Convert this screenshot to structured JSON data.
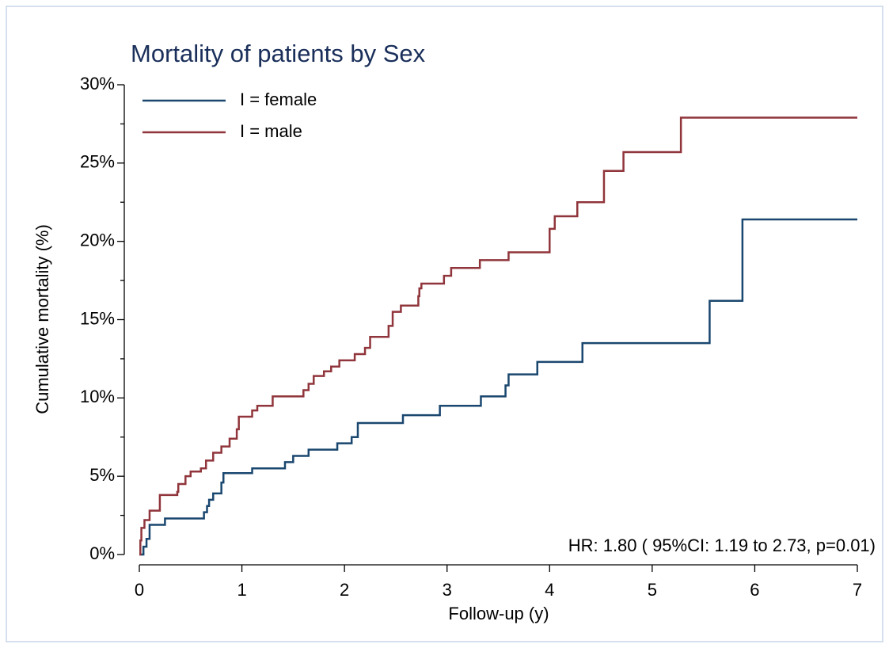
{
  "chart_data": {
    "type": "line",
    "step": "post",
    "title": "Mortality of patients by Sex",
    "x_label": "Follow-up (y)",
    "y_label": "Cumulative mortality (%)",
    "annotation": "HR: 1.80 ( 95%CI: 1.19 to 2.73, p=0.01)",
    "xlim": [
      0,
      7
    ],
    "xticks": [
      0,
      1,
      2,
      3,
      4,
      5,
      6,
      7
    ],
    "ylim": [
      0,
      30
    ],
    "yticks": [
      {
        "value": 0,
        "label": "0%"
      },
      {
        "value": 5,
        "label": "5%"
      },
      {
        "value": 10,
        "label": "10%"
      },
      {
        "value": 15,
        "label": "15%"
      },
      {
        "value": 20,
        "label": "20%"
      },
      {
        "value": 25,
        "label": "25%"
      },
      {
        "value": 30,
        "label": "30%"
      }
    ],
    "yminor": [
      2.5,
      7.5,
      12.5,
      17.5,
      22.5,
      27.5
    ],
    "grid": false,
    "legend": "top-left",
    "series": [
      {
        "name": "I = female",
        "color": "#1a476f",
        "x": [
          0,
          0.04,
          0.07,
          0.1,
          0.25,
          0.63,
          0.66,
          0.68,
          0.72,
          0.8,
          0.82,
          1.1,
          1.42,
          1.5,
          1.65,
          1.93,
          2.07,
          2.13,
          2.57,
          2.93,
          3.33,
          3.57,
          3.6,
          3.88,
          4.32,
          5.56,
          5.88,
          7
        ],
        "values": [
          0,
          0.5,
          1.0,
          1.9,
          2.3,
          2.7,
          3.1,
          3.5,
          3.9,
          4.6,
          5.2,
          5.5,
          5.9,
          6.3,
          6.7,
          7.1,
          7.5,
          8.4,
          8.9,
          9.5,
          10.1,
          10.8,
          11.5,
          12.3,
          13.5,
          16.2,
          21.4,
          21.4
        ]
      },
      {
        "name": "I = male",
        "color": "#90353b",
        "x": [
          0,
          0.01,
          0.02,
          0.05,
          0.1,
          0.2,
          0.37,
          0.38,
          0.45,
          0.5,
          0.6,
          0.65,
          0.72,
          0.8,
          0.88,
          0.95,
          0.97,
          1.1,
          1.15,
          1.3,
          1.6,
          1.65,
          1.7,
          1.8,
          1.87,
          1.95,
          2.1,
          2.2,
          2.25,
          2.43,
          2.47,
          2.55,
          2.72,
          2.73,
          2.75,
          2.97,
          3.04,
          3.32,
          3.6,
          4.0,
          4.05,
          4.27,
          4.53,
          4.72,
          5.28,
          7
        ],
        "values": [
          0,
          0.9,
          1.7,
          2.2,
          2.8,
          3.8,
          4.0,
          4.5,
          5.0,
          5.3,
          5.5,
          6.0,
          6.5,
          6.9,
          7.4,
          8.0,
          8.8,
          9.2,
          9.5,
          10.1,
          10.5,
          10.9,
          11.4,
          11.7,
          12.0,
          12.4,
          12.8,
          13.2,
          13.9,
          14.6,
          15.5,
          15.9,
          16.5,
          17.0,
          17.3,
          17.8,
          18.3,
          18.8,
          19.3,
          20.8,
          21.6,
          22.5,
          24.5,
          25.7,
          27.9,
          27.9
        ]
      }
    ]
  }
}
